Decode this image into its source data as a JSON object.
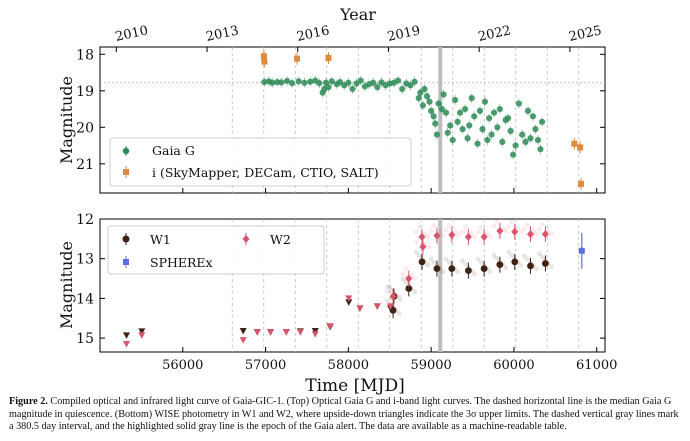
{
  "caption": {
    "label": "Figure 2.",
    "text": "Compiled optical and infrared light curve of Gaia-GIC-1. (Top) Optical Gaia G and i-band light curves. The dashed horizontal line is the median Gaia G magnitude in quiescence. (Bottom) WISE photometry in W1 and W2, where upside-down triangles indicate the 3σ upper limits. The dashed vertical gray lines mark a 380.5 day interval, and the highlighted solid gray line is the epoch of the Gaia alert. The data are available as a machine-readable table."
  },
  "chart_data": [
    {
      "type": "scatter",
      "panel": "top",
      "xlabel": "",
      "top_axis_label": "Year",
      "ylabel": "Magnitude",
      "xlim": [
        55000,
        61100
      ],
      "ylim": [
        21.8,
        17.8
      ],
      "y_inverted": true,
      "yticks": [
        18,
        19,
        20,
        21
      ],
      "top_ticks": [
        {
          "label": "2010",
          "mjd": 55197
        },
        {
          "label": "2013",
          "mjd": 56293
        },
        {
          "label": "2016",
          "mjd": 57388
        },
        {
          "label": "2019",
          "mjd": 58484
        },
        {
          "label": "2022",
          "mjd": 59580
        },
        {
          "label": "2025",
          "mjd": 60676
        }
      ],
      "median_line_y": 18.78,
      "vertical_dashed_mjd": [
        56597.5,
        56978,
        57358.5,
        57739,
        58119.5,
        58500,
        58880.5,
        59261,
        59641.5,
        60022,
        60402.5,
        60783
      ],
      "alert_mjd": 59110,
      "legend_position": "lower-left",
      "series": [
        {
          "name": "Gaia G",
          "color": "#2e8b57",
          "marker": "circle",
          "points": [
            [
              56985,
              18.76
            ],
            [
              57040,
              18.74
            ],
            [
              57080,
              18.78
            ],
            [
              57140,
              18.76
            ],
            [
              57190,
              18.77
            ],
            [
              57260,
              18.73
            ],
            [
              57320,
              18.79
            ],
            [
              57400,
              18.74
            ],
            [
              57470,
              18.78
            ],
            [
              57540,
              18.75
            ],
            [
              57600,
              18.72
            ],
            [
              57650,
              18.79
            ],
            [
              57690,
              19.05
            ],
            [
              57710,
              18.95
            ],
            [
              57730,
              18.78
            ],
            [
              57760,
              18.9
            ],
            [
              57800,
              18.74
            ],
            [
              57860,
              18.82
            ],
            [
              57900,
              18.76
            ],
            [
              57950,
              18.85
            ],
            [
              58000,
              18.78
            ],
            [
              58050,
              18.95
            ],
            [
              58100,
              18.8
            ],
            [
              58150,
              18.72
            ],
            [
              58200,
              18.88
            ],
            [
              58250,
              18.82
            ],
            [
              58300,
              18.78
            ],
            [
              58350,
              18.9
            ],
            [
              58400,
              18.77
            ],
            [
              58450,
              18.85
            ],
            [
              58500,
              18.8
            ],
            [
              58550,
              18.78
            ],
            [
              58600,
              18.72
            ],
            [
              58650,
              18.95
            ],
            [
              58700,
              18.8
            ],
            [
              58750,
              18.85
            ],
            [
              58800,
              18.75
            ],
            [
              58850,
              19.2
            ],
            [
              58870,
              19.05
            ],
            [
              58900,
              19.4
            ],
            [
              58920,
              18.95
            ],
            [
              58950,
              19.15
            ],
            [
              58980,
              19.3
            ],
            [
              59000,
              19.55
            ],
            [
              59030,
              19.7
            ],
            [
              59050,
              19.9
            ],
            [
              59070,
              20.2
            ],
            [
              59090,
              19.35
            ],
            [
              59130,
              19.5
            ],
            [
              59150,
              19.1
            ],
            [
              59180,
              19.6
            ],
            [
              59200,
              20.15
            ],
            [
              59230,
              19.95
            ],
            [
              59260,
              20.35
            ],
            [
              59290,
              19.25
            ],
            [
              59320,
              19.85
            ],
            [
              59350,
              19.6
            ],
            [
              59380,
              20.05
            ],
            [
              59410,
              19.5
            ],
            [
              59440,
              20.3
            ],
            [
              59460,
              19.95
            ],
            [
              59490,
              19.2
            ],
            [
              59520,
              19.7
            ],
            [
              59560,
              20.45
            ],
            [
              59590,
              19.55
            ],
            [
              59620,
              20.05
            ],
            [
              59650,
              19.3
            ],
            [
              59680,
              20.35
            ],
            [
              59700,
              19.75
            ],
            [
              59730,
              20.2
            ],
            [
              59760,
              19.6
            ],
            [
              59800,
              20.0
            ],
            [
              59830,
              19.5
            ],
            [
              59860,
              20.4
            ],
            [
              59900,
              19.8
            ],
            [
              59930,
              19.75
            ],
            [
              59960,
              20.1
            ],
            [
              59990,
              20.75
            ],
            [
              60020,
              20.5
            ],
            [
              60060,
              19.35
            ],
            [
              60100,
              20.2
            ],
            [
              60140,
              20.4
            ],
            [
              60170,
              19.55
            ],
            [
              60200,
              20.3
            ],
            [
              60230,
              19.7
            ],
            [
              60260,
              20.05
            ],
            [
              60290,
              20.35
            ],
            [
              60320,
              20.6
            ],
            [
              60340,
              19.85
            ]
          ]
        },
        {
          "name": "i (SkyMapper, DECam, CTIO, SALT)",
          "color": "#e08a3c",
          "marker": "square",
          "points": [
            [
              56980,
              18.05
            ],
            [
              56985,
              18.2
            ],
            [
              57380,
              18.12
            ],
            [
              57760,
              18.1
            ],
            [
              60730,
              20.45
            ],
            [
              60800,
              20.55
            ],
            [
              60810,
              21.55
            ]
          ]
        }
      ]
    },
    {
      "type": "scatter",
      "panel": "bottom",
      "xlabel": "Time [MJD]",
      "ylabel": "Magnitude",
      "xlim": [
        55000,
        61100
      ],
      "ylim": [
        15.35,
        12.0
      ],
      "y_inverted": true,
      "xticks": [
        56000,
        57000,
        58000,
        59000,
        60000,
        61000
      ],
      "yticks": [
        12,
        13,
        14,
        15
      ],
      "legend_position": "upper-left",
      "series": [
        {
          "name": "W1",
          "color": "#3d2314",
          "marker": "circle",
          "upper_limits": [
            [
              55320,
              14.93
            ],
            [
              55505,
              14.83
            ],
            [
              56730,
              14.82
            ],
            [
              56900,
              14.85
            ],
            [
              57060,
              14.85
            ],
            [
              57250,
              14.85
            ],
            [
              57420,
              14.83
            ],
            [
              57600,
              14.82
            ],
            [
              57780,
              14.72
            ],
            [
              58005,
              14.1
            ],
            [
              58140,
              14.25
            ],
            [
              58350,
              14.2
            ],
            [
              58510,
              14.25
            ]
          ],
          "points": [
            [
              58540,
              14.3
            ],
            [
              58550,
              13.95
            ],
            [
              58730,
              13.75
            ],
            [
              58890,
              13.08
            ],
            [
              59070,
              13.25
            ],
            [
              59250,
              13.25
            ],
            [
              59450,
              13.3
            ],
            [
              59640,
              13.25
            ],
            [
              59830,
              13.15
            ],
            [
              60010,
              13.08
            ],
            [
              60200,
              13.18
            ],
            [
              60380,
              13.12
            ]
          ]
        },
        {
          "name": "W2",
          "color": "#d9556e",
          "marker": "diamond",
          "upper_limits": [
            [
              55320,
              15.15
            ],
            [
              55505,
              14.93
            ],
            [
              56730,
              15.05
            ],
            [
              56900,
              14.85
            ],
            [
              57060,
              14.85
            ],
            [
              57250,
              14.85
            ],
            [
              57420,
              14.85
            ],
            [
              57600,
              14.9
            ],
            [
              57780,
              14.7
            ],
            [
              58005,
              14.0
            ],
            [
              58140,
              14.25
            ],
            [
              58350,
              14.2
            ],
            [
              58510,
              14.2
            ]
          ],
          "points": [
            [
              58540,
              13.95
            ],
            [
              58730,
              13.5
            ],
            [
              58890,
              12.45
            ],
            [
              58900,
              12.7
            ],
            [
              59070,
              12.42
            ],
            [
              59250,
              12.4
            ],
            [
              59450,
              12.45
            ],
            [
              59640,
              12.45
            ],
            [
              59830,
              12.3
            ],
            [
              60010,
              12.32
            ],
            [
              60200,
              12.38
            ],
            [
              60380,
              12.38
            ]
          ]
        },
        {
          "name": "SPHEREx",
          "color": "#5b6ee8",
          "marker": "square",
          "points": [
            [
              60820,
              12.8
            ]
          ]
        }
      ]
    }
  ]
}
